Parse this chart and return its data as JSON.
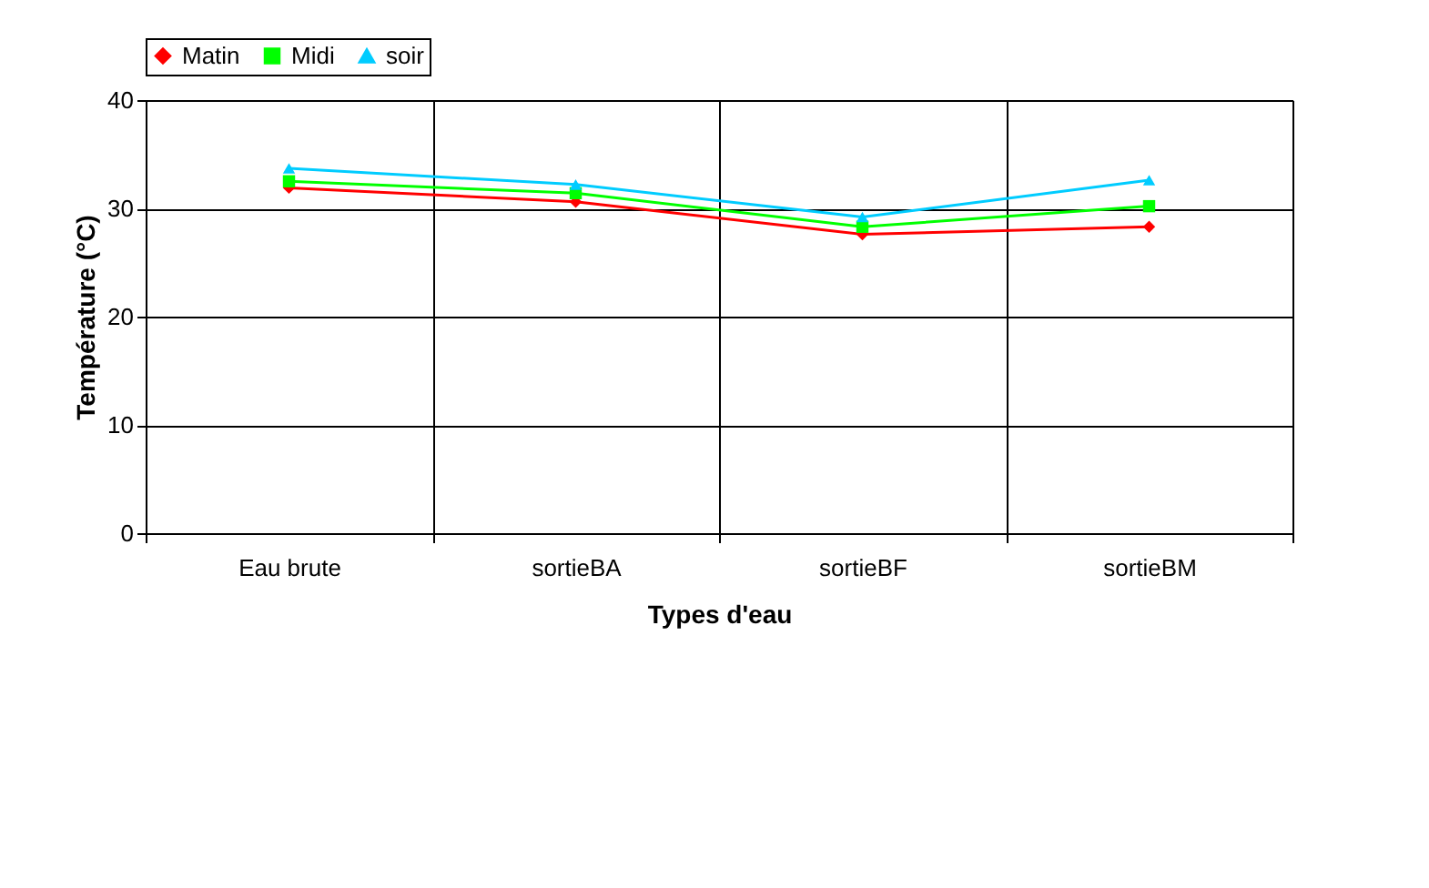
{
  "chart_data": {
    "type": "line",
    "xlabel": "Types d'eau",
    "ylabel": "Température (°C)",
    "categories": [
      "Eau brute",
      "sortieBA",
      "sortieBF",
      "sortieBM"
    ],
    "series": [
      {
        "name": "Matin",
        "color": "#ff0000",
        "marker": "diamond",
        "values": [
          31.9,
          30.6,
          27.6,
          28.3
        ]
      },
      {
        "name": "Midi",
        "color": "#00ff00",
        "marker": "square",
        "values": [
          32.5,
          31.4,
          28.3,
          30.2
        ]
      },
      {
        "name": "soir",
        "color": "#00ccff",
        "marker": "triangle",
        "values": [
          33.7,
          32.2,
          29.2,
          32.6
        ]
      }
    ],
    "ylim": [
      0,
      40
    ],
    "yticks": [
      0,
      10,
      20,
      30,
      40
    ],
    "grid": true,
    "legend": "top"
  }
}
